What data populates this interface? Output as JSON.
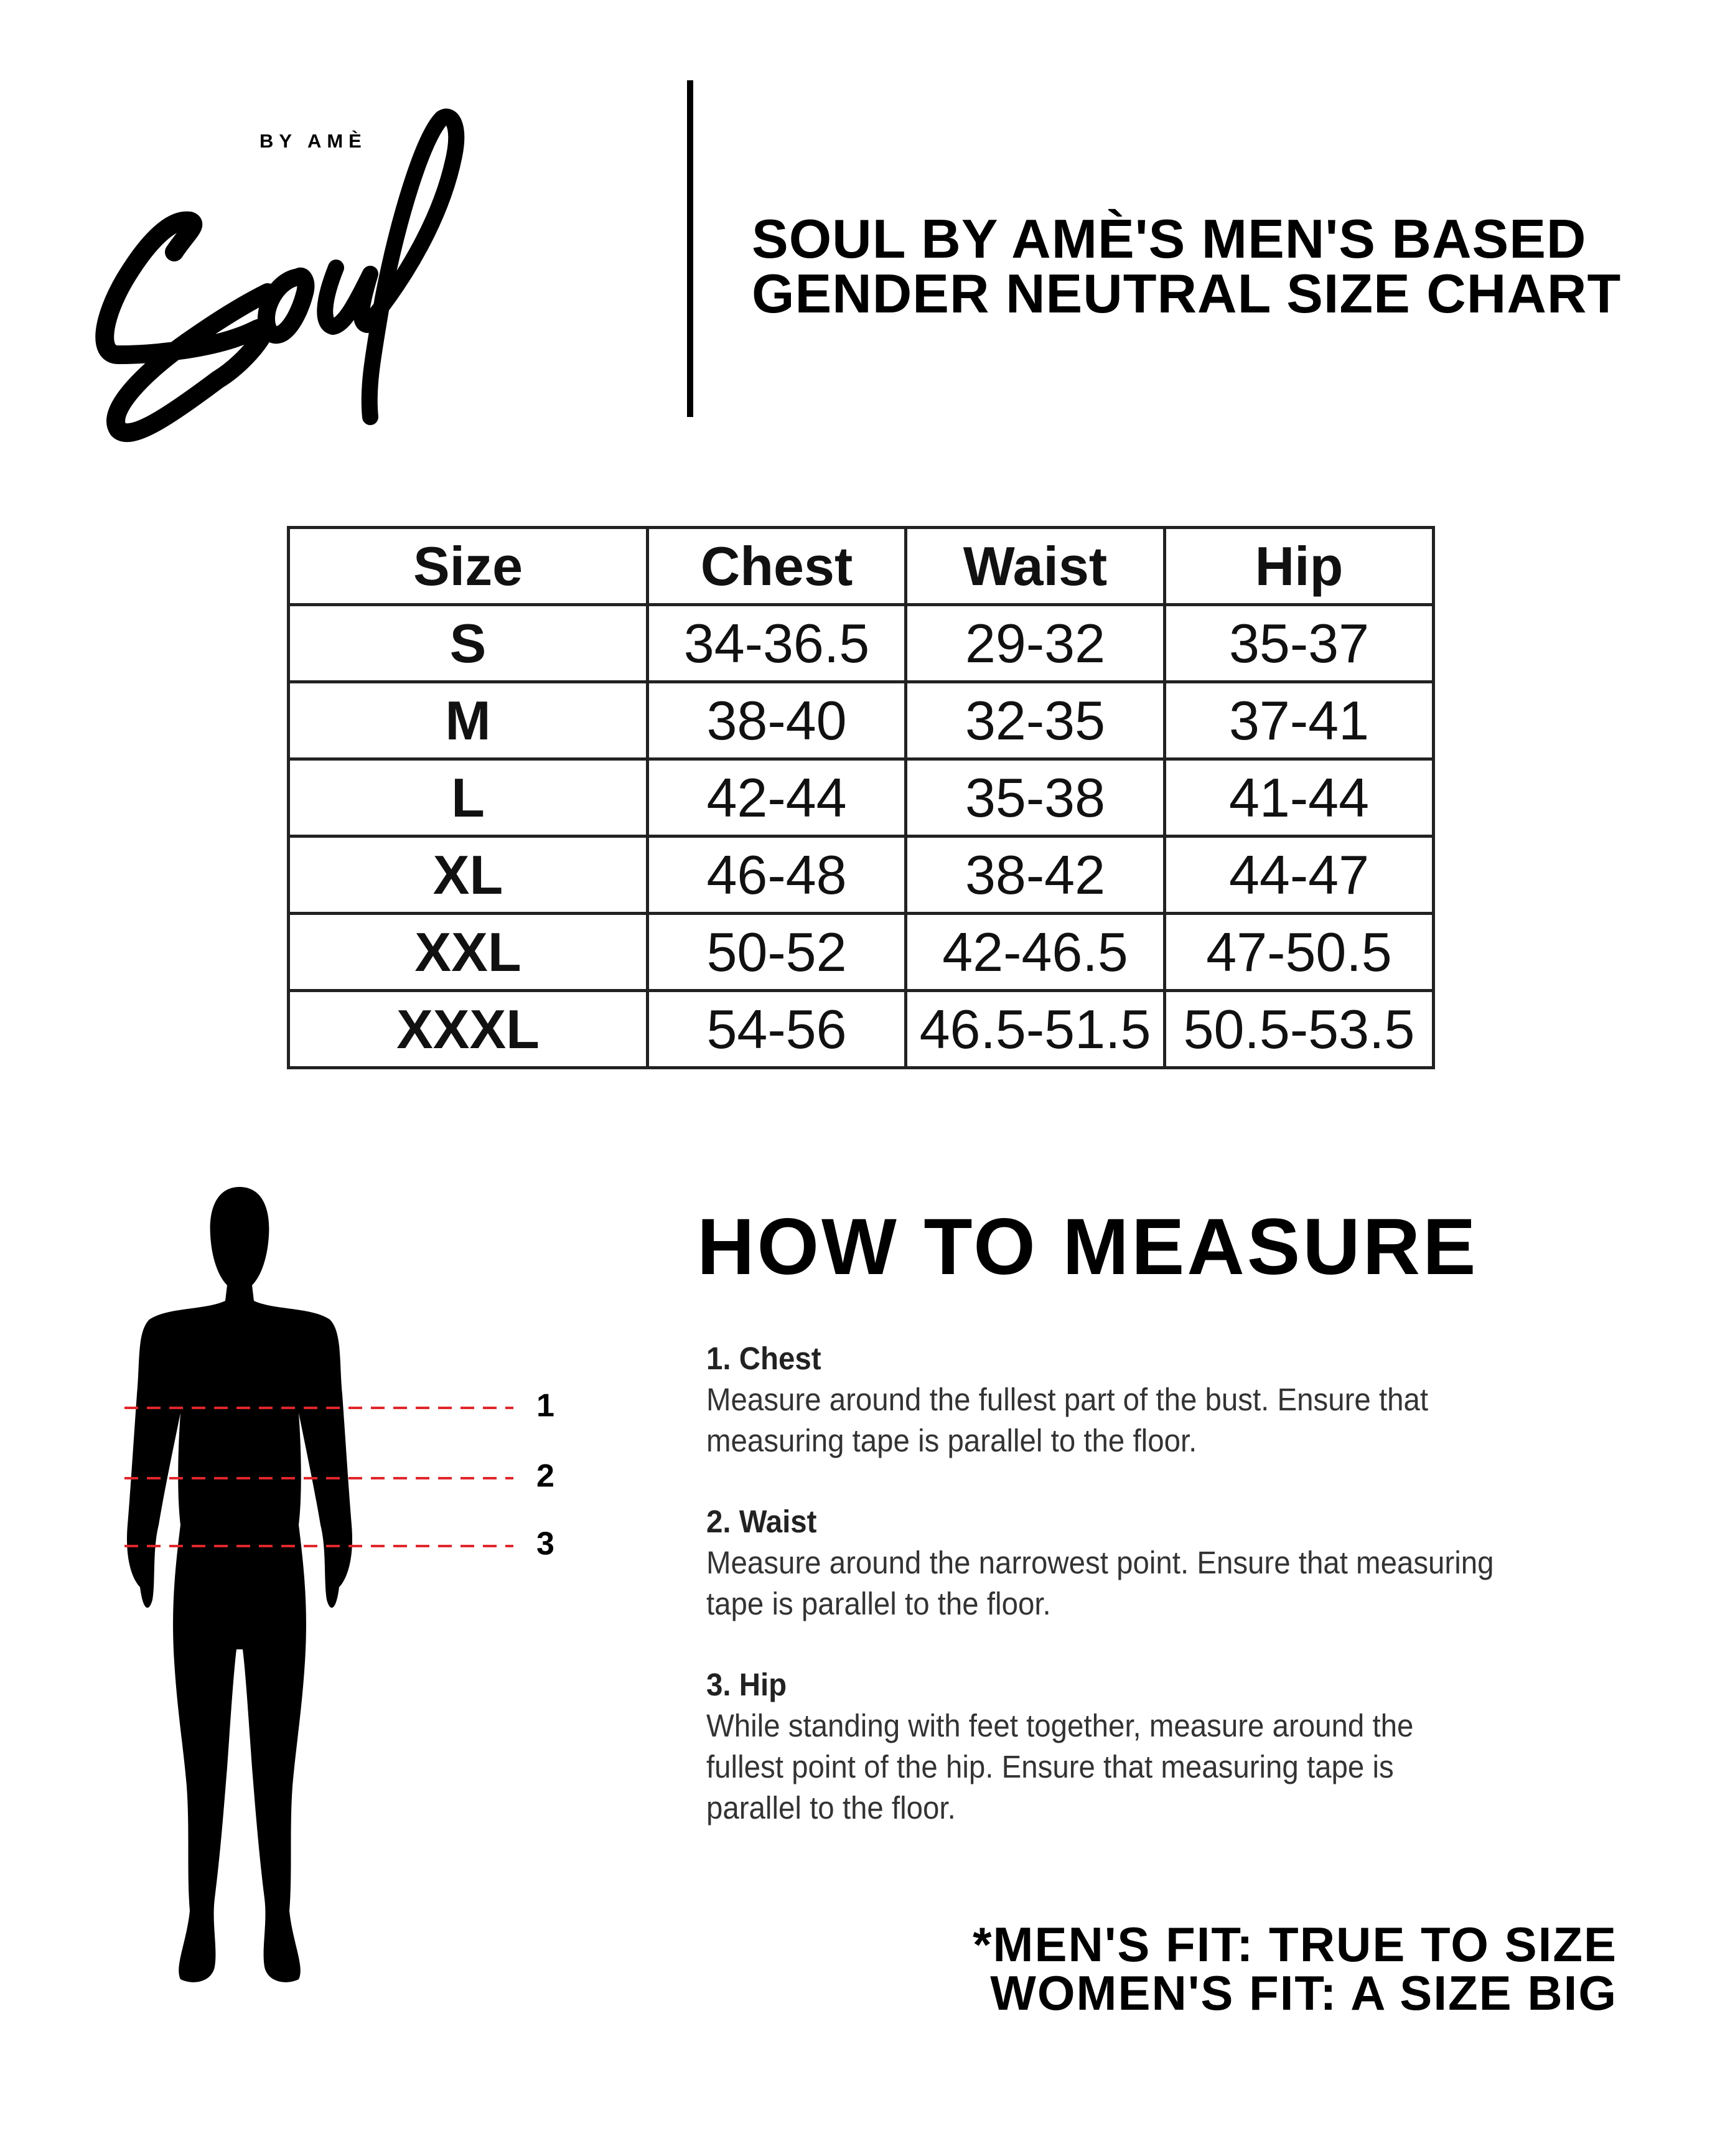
{
  "logo": {
    "script_text": "Soul",
    "tagline": "BY AMÈ"
  },
  "title": {
    "line1": "SOUL BY AMÈ'S MEN'S BASED",
    "line2": "GENDER NEUTRAL SIZE CHART"
  },
  "size_table": {
    "headers": [
      "Size",
      "Chest",
      "Waist",
      "Hip"
    ],
    "rows": [
      [
        "S",
        "34-36.5",
        "29-32",
        "35-37"
      ],
      [
        "M",
        "38-40",
        "32-35",
        "37-41"
      ],
      [
        "L",
        "42-44",
        "35-38",
        "41-44"
      ],
      [
        "XL",
        "46-48",
        "38-42",
        "44-47"
      ],
      [
        "XXL",
        "50-52",
        "42-46.5",
        "47-50.5"
      ],
      [
        "XXXL",
        "54-56",
        "46.5-51.5",
        "50.5-53.5"
      ]
    ]
  },
  "figure": {
    "markers": [
      "1",
      "2",
      "3"
    ],
    "marker_color": "#e0262b"
  },
  "how_to_measure": {
    "title": "HOW TO MEASURE",
    "items": [
      {
        "heading": "1. Chest",
        "lines": [
          "Measure around the fullest part of the bust. Ensure that",
          "measuring tape is parallel to the floor."
        ]
      },
      {
        "heading": "2. Waist",
        "lines": [
          "Measure around the narrowest point. Ensure that measuring",
          "tape is parallel to the floor."
        ]
      },
      {
        "heading": "3. Hip",
        "lines": [
          "While standing with feet together, measure around the",
          "fullest point of the hip. Ensure that measuring tape is",
          "parallel to the floor."
        ]
      }
    ]
  },
  "footer": {
    "line1": "*MEN'S FIT: TRUE TO SIZE",
    "line2": "WOMEN'S FIT: A SIZE BIG"
  }
}
